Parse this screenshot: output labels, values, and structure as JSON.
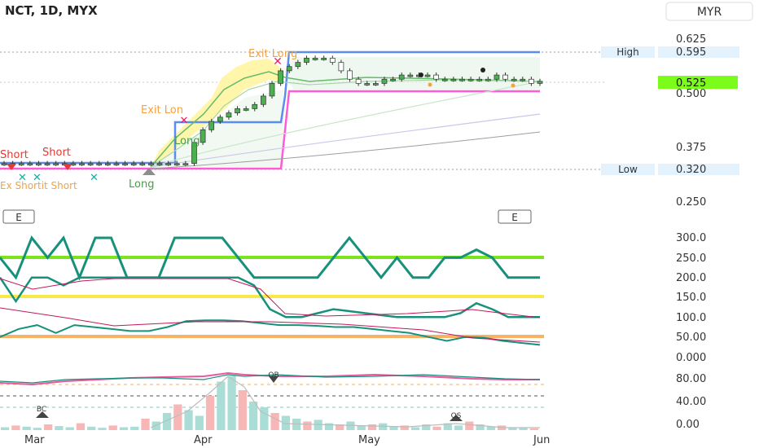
{
  "header": {
    "symbol_line": "NCT, 1D, MYX",
    "currency": "MYR"
  },
  "colors": {
    "up": "#26a69a",
    "down": "#ef5350",
    "long_fill": "#fff176",
    "green_line": "#7de31e",
    "yellow_line": "#f7e94a",
    "orange_line": "#f7b267",
    "magenta": "#ff5bd6",
    "blue": "#5b8def",
    "teal": "#17917b",
    "pink": "#e8589a",
    "last_price_bg": "#7cfc1a"
  },
  "price_panel": {
    "y_ticks": [
      "0.625",
      "0.500",
      "0.375",
      "0.250"
    ],
    "high_label": "High",
    "high_value": "0.595",
    "low_label": "Low",
    "low_value": "0.320",
    "last_price": "0.525",
    "labels": {
      "exit_long_top": "Exit Long",
      "exit_long_mid": "Exit Lon",
      "long_mid": "Long",
      "long_bottom": "Long",
      "short_1": "Short",
      "short_2": "Short",
      "garbled": "Ex Shortit Short",
      "earnings_left": "E",
      "earnings_right": "E"
    }
  },
  "osc_panel": {
    "y_ticks": [
      "300.0",
      "250.0",
      "200.0",
      "150.0",
      "100.0",
      "50.00",
      "0.000"
    ]
  },
  "vol_panel": {
    "y_ticks": [
      "80.00",
      "40.00",
      "0.00"
    ],
    "ob_label": "OB",
    "bc_label": "BC",
    "os_label": "OS"
  },
  "x_axis": {
    "labels": [
      "Mar",
      "Apr",
      "May",
      "Jun"
    ]
  },
  "chart_data": [
    {
      "type": "line",
      "title": "NCT, 1D, MYX",
      "ylim": [
        0.225,
        0.66
      ],
      "series": [
        {
          "values": [
            0.33,
            0.33,
            0.33,
            0.33,
            0.33,
            0.33,
            0.33,
            0.33,
            0.33,
            0.33,
            0.33,
            0.33,
            0.33,
            0.33,
            0.33,
            0.33,
            0.33,
            0.33,
            0.33,
            0.33,
            0.33,
            0.33,
            0.38,
            0.41,
            0.43,
            0.44,
            0.45,
            0.46,
            0.46,
            0.47,
            0.49,
            0.52,
            0.55,
            0.56,
            0.57,
            0.58,
            0.58,
            0.58,
            0.57,
            0.55,
            0.53,
            0.52,
            0.52,
            0.52,
            0.53,
            0.53,
            0.54,
            0.54,
            0.54,
            0.54,
            0.53,
            0.53,
            0.53,
            0.53,
            0.53,
            0.53,
            0.53,
            0.54,
            0.53,
            0.53,
            0.53,
            0.52,
            0.525
          ]
        }
      ],
      "levels": {
        "high": 0.595,
        "low": 0.32,
        "last": 0.525
      }
    },
    {
      "type": "line",
      "ylim": [
        0,
        300
      ],
      "reference_lines": [
        250,
        150,
        50
      ],
      "series": [
        {
          "values": [
            250,
            200,
            300,
            250,
            300,
            200,
            300,
            300,
            200,
            200,
            200,
            300,
            300,
            300,
            300,
            250,
            200,
            200,
            200,
            200,
            200,
            250,
            300,
            250,
            200,
            250,
            200,
            200,
            250,
            250,
            270,
            250,
            200,
            200,
            200
          ]
        },
        {
          "values": [
            200,
            140,
            200,
            200,
            180,
            200,
            200,
            200,
            200,
            200,
            200,
            200,
            200,
            200,
            200,
            200,
            180,
            120,
            100,
            100,
            110,
            120,
            115,
            110,
            105,
            100,
            100,
            100,
            100,
            110,
            135,
            120,
            100,
            100,
            100
          ]
        },
        {
          "values": [
            50,
            70,
            80,
            60,
            80,
            75,
            70,
            65,
            65,
            75,
            90,
            92,
            92,
            90,
            85,
            80,
            80,
            78,
            75,
            75,
            70,
            65,
            60,
            50,
            40,
            50,
            48,
            40,
            35,
            30
          ]
        }
      ]
    },
    {
      "type": "bar",
      "ylim": [
        0,
        100
      ],
      "values": [
        5,
        8,
        6,
        4,
        10,
        7,
        5,
        12,
        6,
        4,
        8,
        5,
        6,
        20,
        15,
        30,
        45,
        35,
        25,
        60,
        85,
        95,
        70,
        50,
        40,
        30,
        25,
        20,
        15,
        18,
        12,
        10,
        15,
        8,
        10,
        12,
        6,
        8,
        5,
        10,
        6,
        12,
        8,
        15,
        10,
        6,
        8,
        5,
        4,
        3
      ],
      "series": [
        {
          "values": [
            70,
            72,
            73,
            75,
            76,
            78,
            80,
            82,
            84,
            85,
            86,
            87,
            88,
            90,
            89,
            86,
            84,
            82,
            80,
            78,
            77,
            76,
            76,
            75,
            75,
            74
          ]
        }
      ]
    }
  ]
}
